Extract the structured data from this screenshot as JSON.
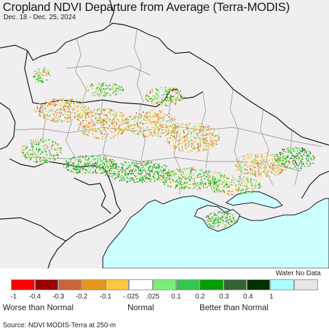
{
  "title": "Cropland NDVI Departure from Average (Terra-MODIS)",
  "subtitle": "Dec. 18 - Dec. 25, 2024",
  "legend": {
    "water_no_data_label": "Water No Data",
    "swatches": [
      {
        "color": "#ff0000"
      },
      {
        "color": "#990000"
      },
      {
        "color": "#c8643c"
      },
      {
        "color": "#e6961e"
      },
      {
        "color": "#ffc83c"
      },
      {
        "color": "#ffffff"
      },
      {
        "color": "#78f078"
      },
      {
        "color": "#32c850"
      },
      {
        "color": "#00a000"
      },
      {
        "color": "#326432"
      },
      {
        "color": "#003200"
      },
      {
        "color": "#aaffff"
      },
      {
        "color": "#e6e6e6"
      }
    ],
    "ticks": [
      "-1",
      "-0.4",
      "-0.3",
      "-0.2",
      "-0.1",
      "-.025",
      ".025",
      "0.1",
      "0.2",
      "0.3",
      "0.4",
      "1"
    ],
    "worse_label": "Worse than Normal",
    "normal_label": "Normal",
    "better_label": "Better than Normal"
  },
  "map": {
    "land_color": "#f0eef0",
    "sea_color": "#ccffff",
    "border_color": "#111111",
    "region_border_color": "#888888"
  },
  "source": "Source: NDVI MODIS-Terra at 250-m"
}
